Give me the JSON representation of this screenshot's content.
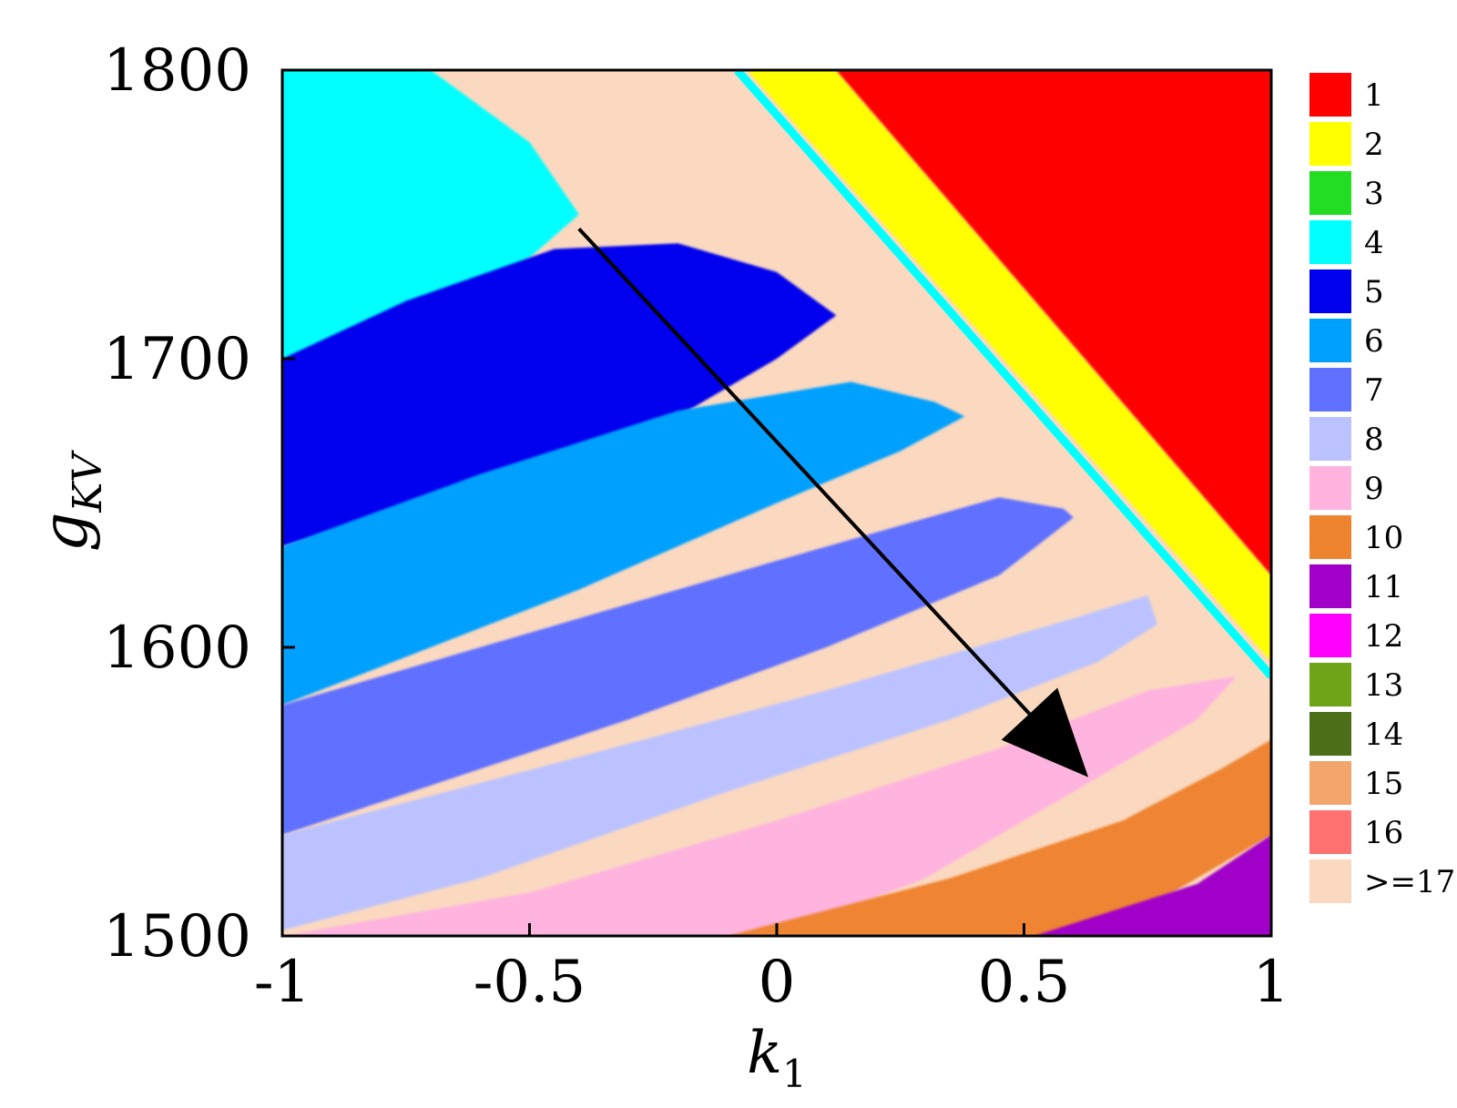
{
  "chart_data": {
    "type": "heatmap",
    "title": "",
    "xlabel": "k",
    "xlabel_sub": "1",
    "ylabel": "g",
    "ylabel_sub": "KV",
    "xlim": [
      -1,
      1
    ],
    "ylim": [
      1500,
      1800
    ],
    "xticks": [
      -1,
      -0.5,
      0,
      0.5,
      1
    ],
    "xtick_labels": [
      "-1",
      "-0.5",
      "0",
      "0.5",
      "1"
    ],
    "yticks": [
      1500,
      1600,
      1700,
      1800
    ],
    "ytick_labels": [
      "1500",
      "1600",
      "1700",
      "1800"
    ],
    "legend_position": "right",
    "legend": [
      {
        "label": "1",
        "color": "#ff0000"
      },
      {
        "label": "2",
        "color": "#ffff00"
      },
      {
        "label": "3",
        "color": "#22dd22"
      },
      {
        "label": "4",
        "color": "#00ffff"
      },
      {
        "label": "5",
        "color": "#0000ee"
      },
      {
        "label": "6",
        "color": "#00a0ff"
      },
      {
        "label": "7",
        "color": "#6070ff"
      },
      {
        "label": "8",
        "color": "#bcc2ff"
      },
      {
        "label": "9",
        "color": "#ffb3df"
      },
      {
        "label": "10",
        "color": "#ef8430"
      },
      {
        "label": "11",
        "color": "#a000c8"
      },
      {
        "label": "12",
        "color": "#ff00ff"
      },
      {
        "label": "13",
        "color": "#6fa318"
      },
      {
        "label": "14",
        "color": "#4b6e18"
      },
      {
        "label": "15",
        "color": "#f3a66c"
      },
      {
        "label": "16",
        "color": "#ff7070"
      },
      {
        "label": ">=17",
        "color": "#fad9c0"
      }
    ],
    "regions": [
      {
        "label": "4",
        "polygon": [
          [
            -1,
            1800
          ],
          [
            -0.7,
            1800
          ],
          [
            -0.5,
            1775
          ],
          [
            -0.4,
            1750
          ],
          [
            -0.5,
            1735
          ],
          [
            -0.7,
            1715
          ],
          [
            -1,
            1700
          ]
        ]
      },
      {
        "label": "5",
        "polygon": [
          [
            -1,
            1700
          ],
          [
            -0.75,
            1720
          ],
          [
            -0.45,
            1738
          ],
          [
            -0.2,
            1740
          ],
          [
            0.0,
            1730
          ],
          [
            0.12,
            1715
          ],
          [
            0.0,
            1700
          ],
          [
            -0.2,
            1680
          ],
          [
            -0.5,
            1660
          ],
          [
            -1,
            1635
          ]
        ]
      },
      {
        "label": "6",
        "polygon": [
          [
            -1,
            1635
          ],
          [
            -0.6,
            1660
          ],
          [
            -0.2,
            1682
          ],
          [
            0.15,
            1692
          ],
          [
            0.32,
            1685
          ],
          [
            0.38,
            1680
          ],
          [
            0.25,
            1668
          ],
          [
            0.0,
            1650
          ],
          [
            -0.4,
            1620
          ],
          [
            -1,
            1580
          ]
        ]
      },
      {
        "label": "7",
        "polygon": [
          [
            -1,
            1580
          ],
          [
            -0.5,
            1605
          ],
          [
            0.0,
            1630
          ],
          [
            0.45,
            1652
          ],
          [
            0.58,
            1648
          ],
          [
            0.6,
            1645
          ],
          [
            0.45,
            1625
          ],
          [
            0.1,
            1600
          ],
          [
            -0.3,
            1575
          ],
          [
            -1,
            1535
          ]
        ]
      },
      {
        "label": "8",
        "polygon": [
          [
            -1,
            1535
          ],
          [
            -0.4,
            1562
          ],
          [
            0.1,
            1585
          ],
          [
            0.6,
            1610
          ],
          [
            0.75,
            1618
          ],
          [
            0.77,
            1608
          ],
          [
            0.65,
            1595
          ],
          [
            0.35,
            1575
          ],
          [
            -0.1,
            1550
          ],
          [
            -0.6,
            1520
          ],
          [
            -1,
            1502
          ]
        ]
      },
      {
        "label": "9",
        "polygon": [
          [
            -1,
            1500
          ],
          [
            -0.5,
            1515
          ],
          [
            0.0,
            1540
          ],
          [
            0.45,
            1565
          ],
          [
            0.75,
            1585
          ],
          [
            0.93,
            1590
          ],
          [
            0.85,
            1575
          ],
          [
            0.6,
            1550
          ],
          [
            0.3,
            1520
          ],
          [
            0.0,
            1500
          ]
        ]
      },
      {
        "label": "10",
        "polygon": [
          [
            -0.1,
            1500
          ],
          [
            0.35,
            1520
          ],
          [
            0.7,
            1540
          ],
          [
            0.9,
            1558
          ],
          [
            1,
            1568
          ],
          [
            1,
            1535
          ],
          [
            0.8,
            1515
          ],
          [
            0.6,
            1500
          ]
        ]
      },
      {
        "label": "11",
        "polygon": [
          [
            0.52,
            1500
          ],
          [
            0.85,
            1518
          ],
          [
            1,
            1535
          ],
          [
            1,
            1500
          ]
        ]
      },
      {
        "label": "2",
        "polygon": [
          [
            -0.06,
            1800
          ],
          [
            0.12,
            1800
          ],
          [
            1,
            1625
          ],
          [
            1,
            1595
          ]
        ]
      },
      {
        "label": "1",
        "polygon": [
          [
            0.12,
            1800
          ],
          [
            1,
            1800
          ],
          [
            1,
            1625
          ]
        ]
      }
    ],
    "arrow": {
      "from": [
        -0.4,
        1745
      ],
      "to": [
        0.63,
        1555
      ]
    }
  }
}
